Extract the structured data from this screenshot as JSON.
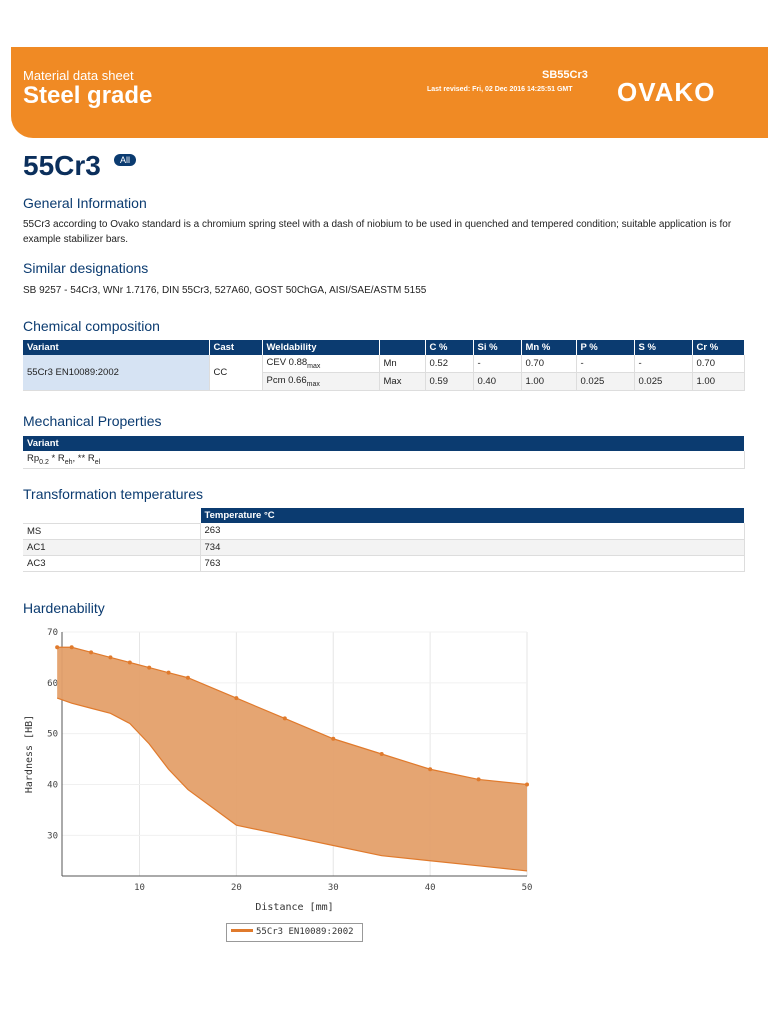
{
  "header": {
    "subtitle": "Material data sheet",
    "title": "Steel grade",
    "code": "SB55Cr3",
    "revised": "Last revised: Fri, 02 Dec 2016 14:25:51 GMT",
    "logo": "OVAKO"
  },
  "grade": {
    "name": "55Cr3",
    "badge": "All"
  },
  "general": {
    "title": "General Information",
    "text": "55Cr3 according to Ovako standard is a chromium spring steel with a dash of niobium to be used in quenched and tempered condition; suitable application is for example stabilizer bars."
  },
  "similar": {
    "title": "Similar designations",
    "text": "SB 9257 - 54Cr3, WNr 1.7176, DIN 55Cr3, 527A60, GOST 50ChGA, AISI/SAE/ASTM 5155"
  },
  "chemical": {
    "title": "Chemical composition",
    "headers": [
      "Variant",
      "Cast",
      "Weldability",
      "",
      "C %",
      "Si %",
      "Mn %",
      "P %",
      "S %",
      "Cr %"
    ],
    "variant": "55Cr3 EN10089:2002",
    "cast": "CC",
    "rows": [
      {
        "weld": "CEV 0.88",
        "weld_sub": "max",
        "limit": "Mn",
        "c": "0.52",
        "si": "-",
        "mn": "0.70",
        "p": "-",
        "s": "-",
        "cr": "0.70"
      },
      {
        "weld": "Pcm 0.66",
        "weld_sub": "max",
        "limit": "Max",
        "c": "0.59",
        "si": "0.40",
        "mn": "1.00",
        "p": "0.025",
        "s": "0.025",
        "cr": "1.00"
      }
    ]
  },
  "mechanical": {
    "title": "Mechanical Properties",
    "header": "Variant",
    "note": {
      "a": "Rp",
      "a_sub": "0.2",
      "b": " * R",
      "b_sub": "eh",
      "c": ", ** R",
      "c_sub": "el"
    }
  },
  "transformation": {
    "title": "Transformation temperatures",
    "header": "Temperature °C",
    "rows": [
      {
        "label": "MS",
        "value": "263"
      },
      {
        "label": "AC1",
        "value": "734"
      },
      {
        "label": "AC3",
        "value": "763"
      }
    ]
  },
  "hardenability": {
    "title": "Hardenability"
  },
  "chart_data": {
    "type": "area",
    "xlabel": "Distance [mm]",
    "ylabel": "Hardness [HB]",
    "xlim": [
      2,
      50
    ],
    "ylim": [
      22,
      70
    ],
    "xticks": [
      10,
      20,
      30,
      40,
      50
    ],
    "yticks": [
      30,
      40,
      50,
      60,
      70
    ],
    "series": [
      {
        "name": "55Cr3 EN10089:2002 max",
        "x": [
          1.5,
          3,
          5,
          7,
          9,
          11,
          13,
          15,
          20,
          25,
          30,
          35,
          40,
          45,
          50
        ],
        "values": [
          67,
          67,
          66,
          65,
          64,
          63,
          62,
          61,
          57,
          53,
          49,
          46,
          43,
          41,
          40
        ]
      },
      {
        "name": "55Cr3 EN10089:2002 min",
        "x": [
          1.5,
          3,
          5,
          7,
          9,
          11,
          13,
          15,
          20,
          25,
          30,
          35,
          40,
          45,
          50
        ],
        "values": [
          57,
          56,
          55,
          54,
          52,
          48,
          43,
          39,
          32,
          30,
          28,
          26,
          25,
          24,
          23
        ]
      }
    ],
    "legend": "55Cr3 EN10089:2002",
    "color": "#e07a2c",
    "fill": "#e4a06a"
  }
}
